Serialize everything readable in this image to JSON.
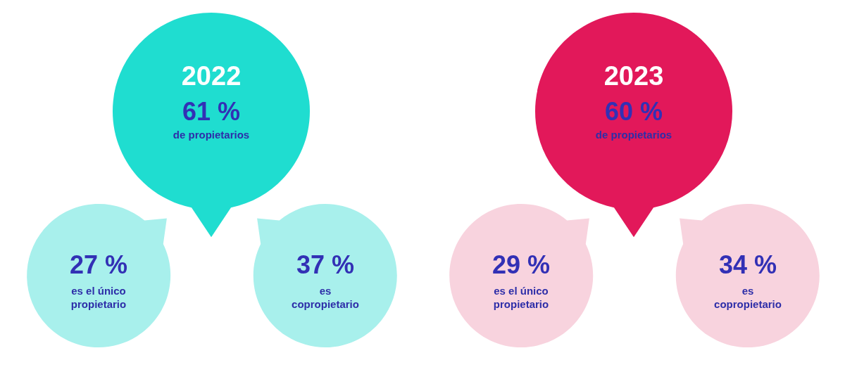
{
  "chart_data": [
    {
      "type": "other",
      "title": "2022",
      "categories": [
        "de propietarios",
        "es el único propietario",
        "es copropietario"
      ],
      "values": [
        61,
        27,
        37
      ],
      "value_labels": [
        "61 %",
        "27 %",
        "37 %"
      ],
      "colors": [
        "#1fddd0",
        "#a8f0ec",
        "#a8f0ec"
      ]
    },
    {
      "type": "other",
      "title": "2023",
      "categories": [
        "de propietarios",
        "es el único propietario",
        "es copropietario"
      ],
      "values": [
        60,
        29,
        34
      ],
      "value_labels": [
        "60 %",
        "29 %",
        "34 %"
      ],
      "colors": [
        "#e2185a",
        "#f8d3de",
        "#f8d3de"
      ]
    }
  ]
}
